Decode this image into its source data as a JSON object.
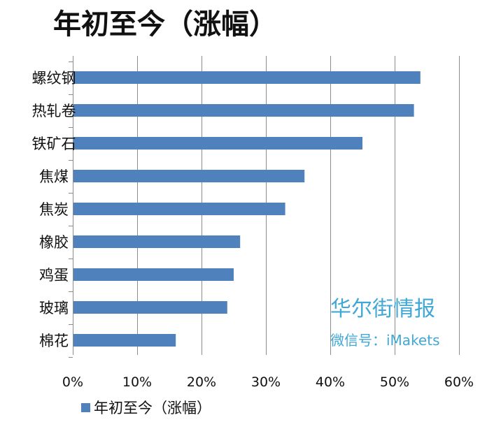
{
  "chart_data": {
    "type": "bar",
    "orientation": "horizontal",
    "title": "年初至今（涨幅）",
    "categories": [
      "螺纹钢",
      "热轧卷",
      "铁矿石",
      "焦煤",
      "焦炭",
      "橡胶",
      "鸡蛋",
      "玻璃",
      "棉花"
    ],
    "series": [
      {
        "name": "年初至今（涨幅）",
        "values": [
          54,
          53,
          45,
          36,
          33,
          26,
          25,
          24,
          16
        ],
        "color": "#4f81bd"
      }
    ],
    "xlim": [
      0,
      60
    ],
    "xticks": [
      "0%",
      "10%",
      "20%",
      "30%",
      "40%",
      "50%",
      "60%"
    ],
    "tick_values": [
      0,
      10,
      20,
      30,
      40,
      50,
      60
    ],
    "unit": "%",
    "grid": true,
    "legend_position": "bottom-left"
  },
  "watermark": {
    "main": "华尔街情报",
    "sub": "微信号：iMakets"
  }
}
